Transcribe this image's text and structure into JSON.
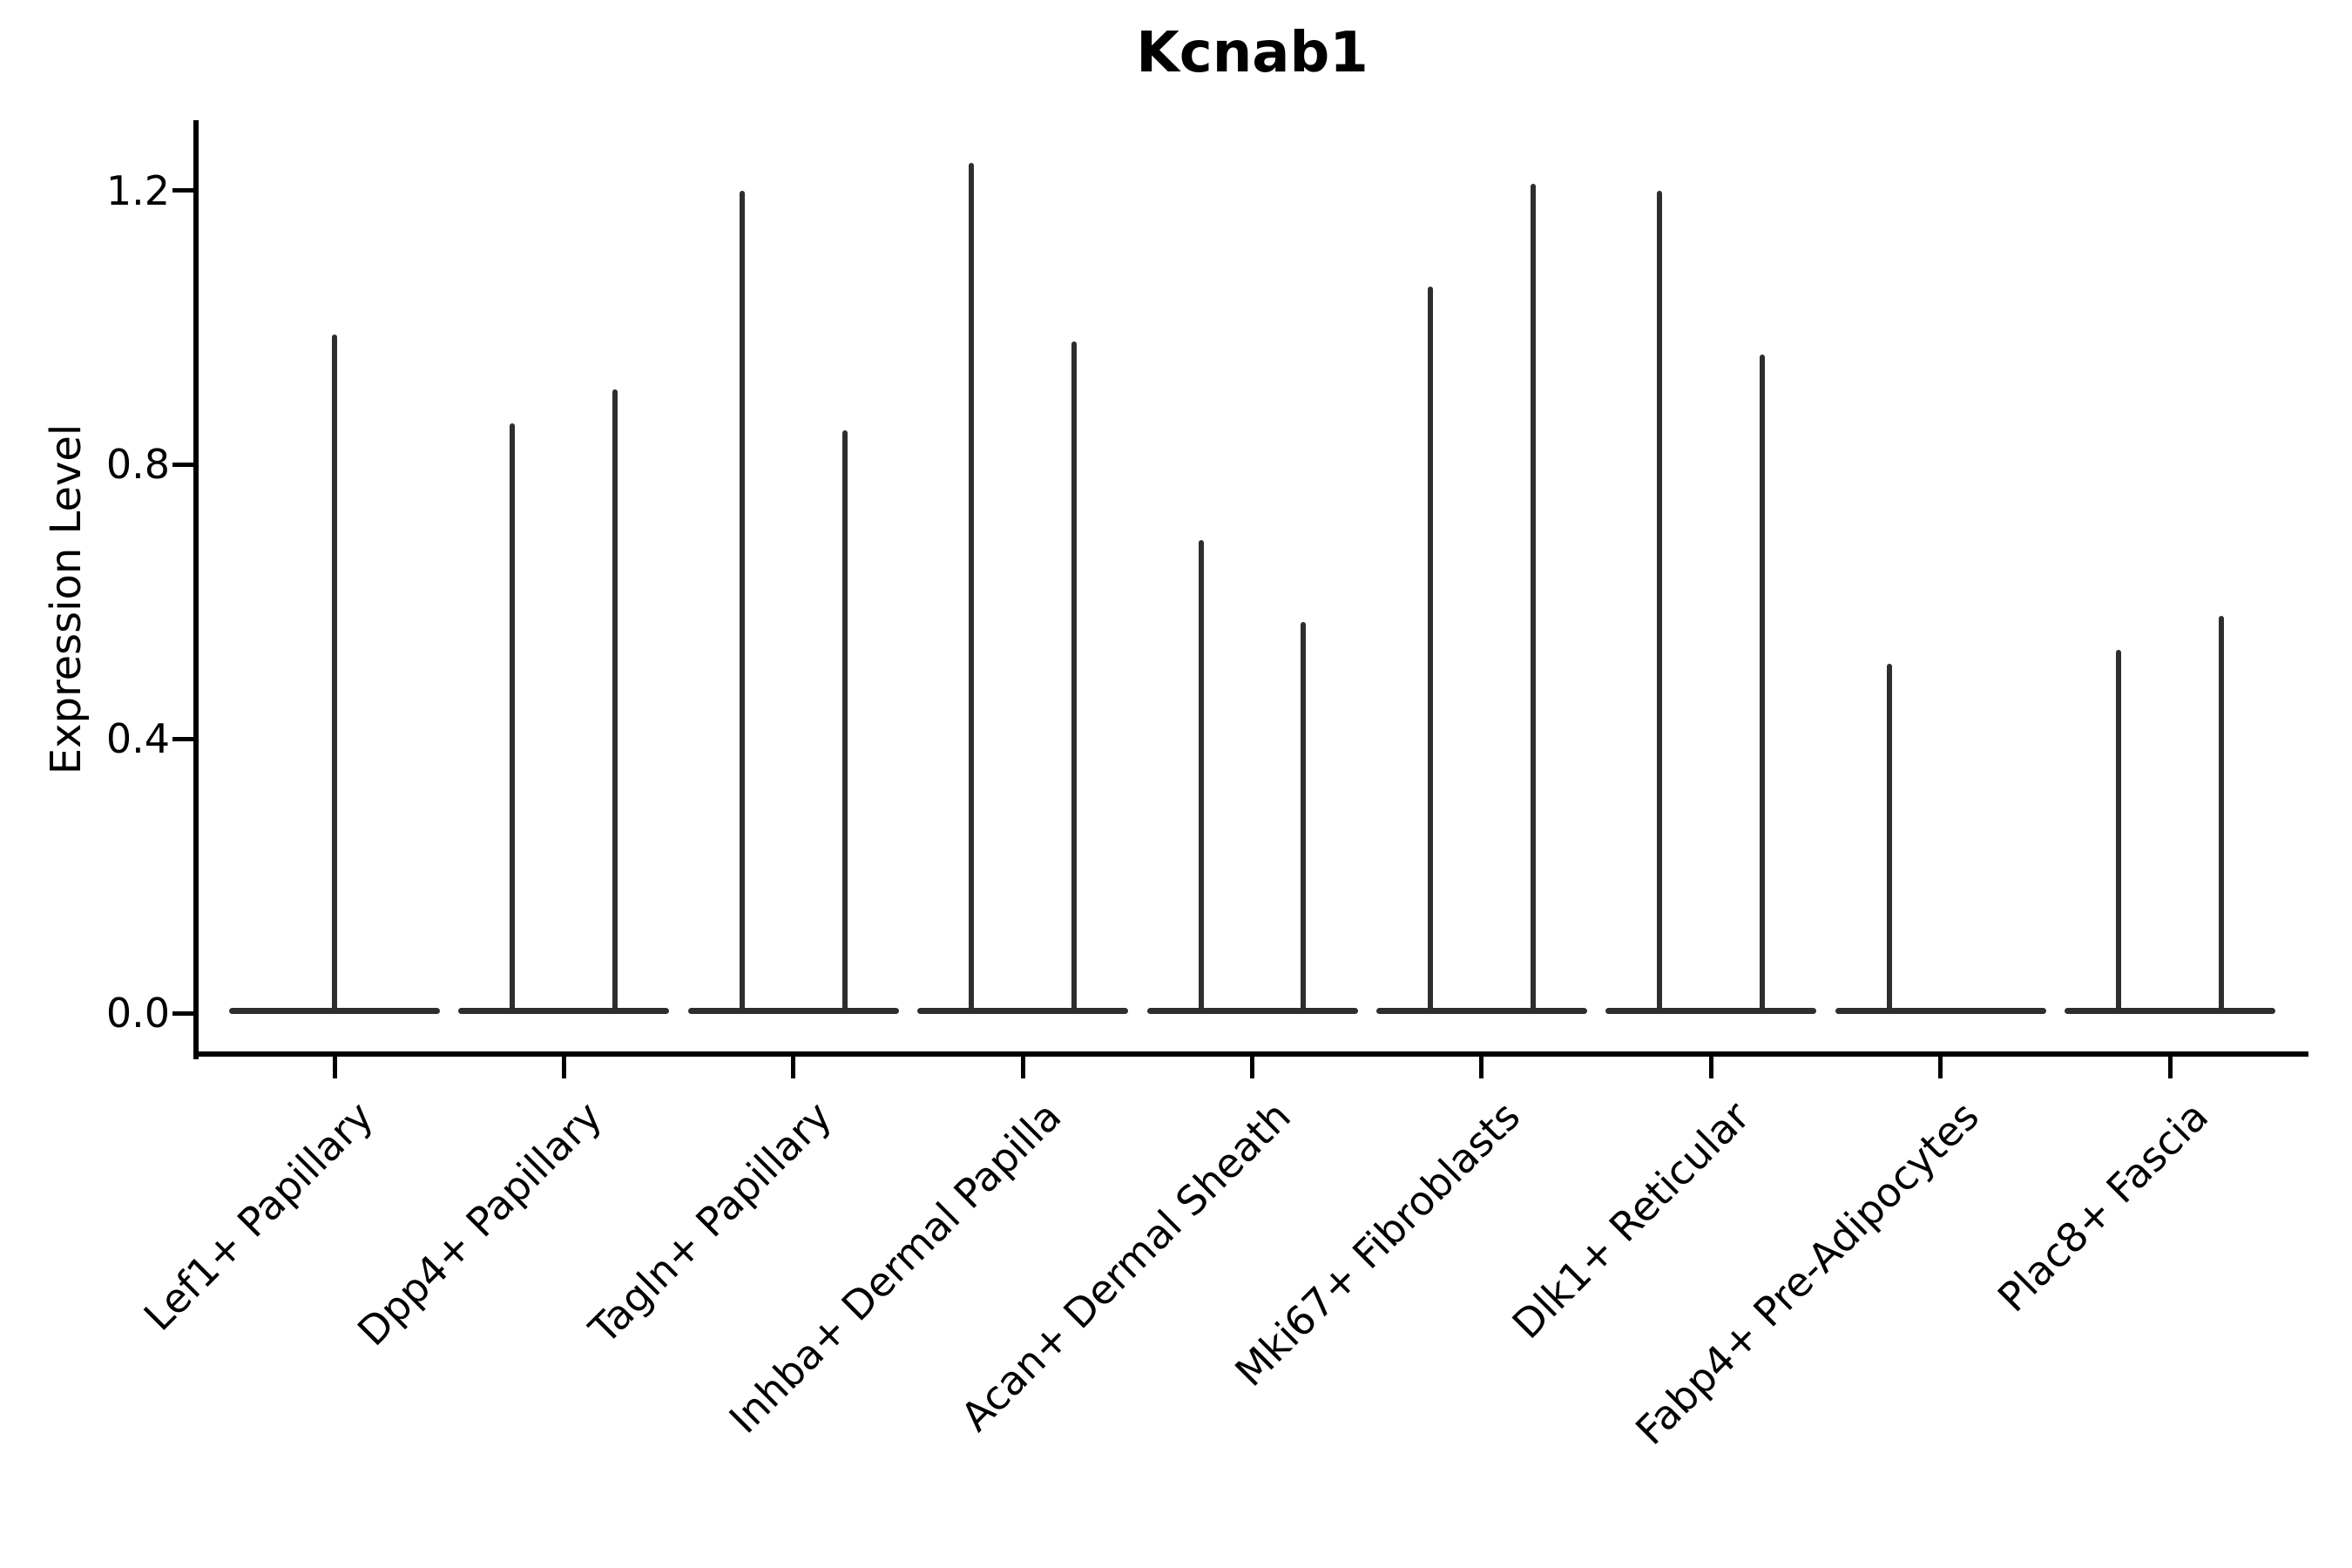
{
  "title": "Kcnab1",
  "y_axis": {
    "label": "Expression Level",
    "ticks": [
      {
        "label": "0.0",
        "value": 0.0
      },
      {
        "label": "0.4",
        "value": 0.4
      },
      {
        "label": "0.8",
        "value": 0.8
      },
      {
        "label": "1.2",
        "value": 1.2
      }
    ]
  },
  "x_axis": {
    "categories": [
      "Lef1+ Papillary",
      "Dpp4+ Papillary",
      "Tagln+ Papillary",
      "Inhba+ Dermal Papilla",
      "Acan+ Dermal Sheath",
      "Mki67+ Fibroblasts",
      "Dlk1+ Reticular",
      "Fabp4+ Pre-Adipocytes",
      "Plac8+ Fascia"
    ]
  },
  "colors": {
    "violin": "#2e2e2e",
    "axis": "#000000",
    "background": "#ffffff"
  },
  "chart_data": {
    "type": "violin",
    "title": "Kcnab1",
    "xlabel": "",
    "ylabel": "Expression Level",
    "ylim": [
      0,
      1.29
    ],
    "yticks": [
      0.0,
      0.4,
      0.8,
      1.2
    ],
    "grid": false,
    "spines": [
      "left",
      "bottom"
    ],
    "x_tick_rotation": 45,
    "categories": [
      "Lef1+ Papillary",
      "Dpp4+ Papillary",
      "Tagln+ Papillary",
      "Inhba+ Dermal Papilla",
      "Acan+ Dermal Sheath",
      "Mki67+ Fibroblasts",
      "Dlk1+ Reticular",
      "Fabp4+ Pre-Adipocytes",
      "Plac8+ Fascia"
    ],
    "description": "Violin plot of Kcnab1 expression per fibroblast subtype. Expression is near zero for most cells: each violin collapses to a flat horizontal base at 0 with thin vertical spikes reaching the maximum expression value of rare expressing cells. Offsets are fractions of the category spacing (left/right sub-violin positions).",
    "violins": [
      {
        "category": "Lef1+ Papillary",
        "spikes": [
          {
            "offset": 0.0,
            "max": 0.99
          }
        ]
      },
      {
        "category": "Dpp4+ Papillary",
        "spikes": [
          {
            "offset": -0.224,
            "max": 0.86
          },
          {
            "offset": 0.224,
            "max": 0.91
          }
        ]
      },
      {
        "category": "Tagln+ Papillary",
        "spikes": [
          {
            "offset": -0.224,
            "max": 1.2
          },
          {
            "offset": 0.224,
            "max": 0.85
          }
        ]
      },
      {
        "category": "Inhba+ Dermal Papilla",
        "spikes": [
          {
            "offset": -0.224,
            "max": 1.24
          },
          {
            "offset": 0.224,
            "max": 0.98
          }
        ]
      },
      {
        "category": "Acan+ Dermal Sheath",
        "spikes": [
          {
            "offset": -0.224,
            "max": 0.69
          },
          {
            "offset": 0.224,
            "max": 0.57
          }
        ]
      },
      {
        "category": "Mki67+ Fibroblasts",
        "spikes": [
          {
            "offset": -0.224,
            "max": 1.06
          },
          {
            "offset": 0.224,
            "max": 1.21
          }
        ]
      },
      {
        "category": "Dlk1+ Reticular",
        "spikes": [
          {
            "offset": -0.224,
            "max": 1.2
          },
          {
            "offset": 0.224,
            "max": 0.96
          }
        ]
      },
      {
        "category": "Fabp4+ Pre-Adipocytes",
        "spikes": [
          {
            "offset": -0.224,
            "max": 0.51
          }
        ]
      },
      {
        "category": "Plac8+ Fascia",
        "spikes": [
          {
            "offset": -0.224,
            "max": 0.53
          },
          {
            "offset": 0.224,
            "max": 0.58
          }
        ]
      }
    ],
    "baseline_value": 0.0
  }
}
